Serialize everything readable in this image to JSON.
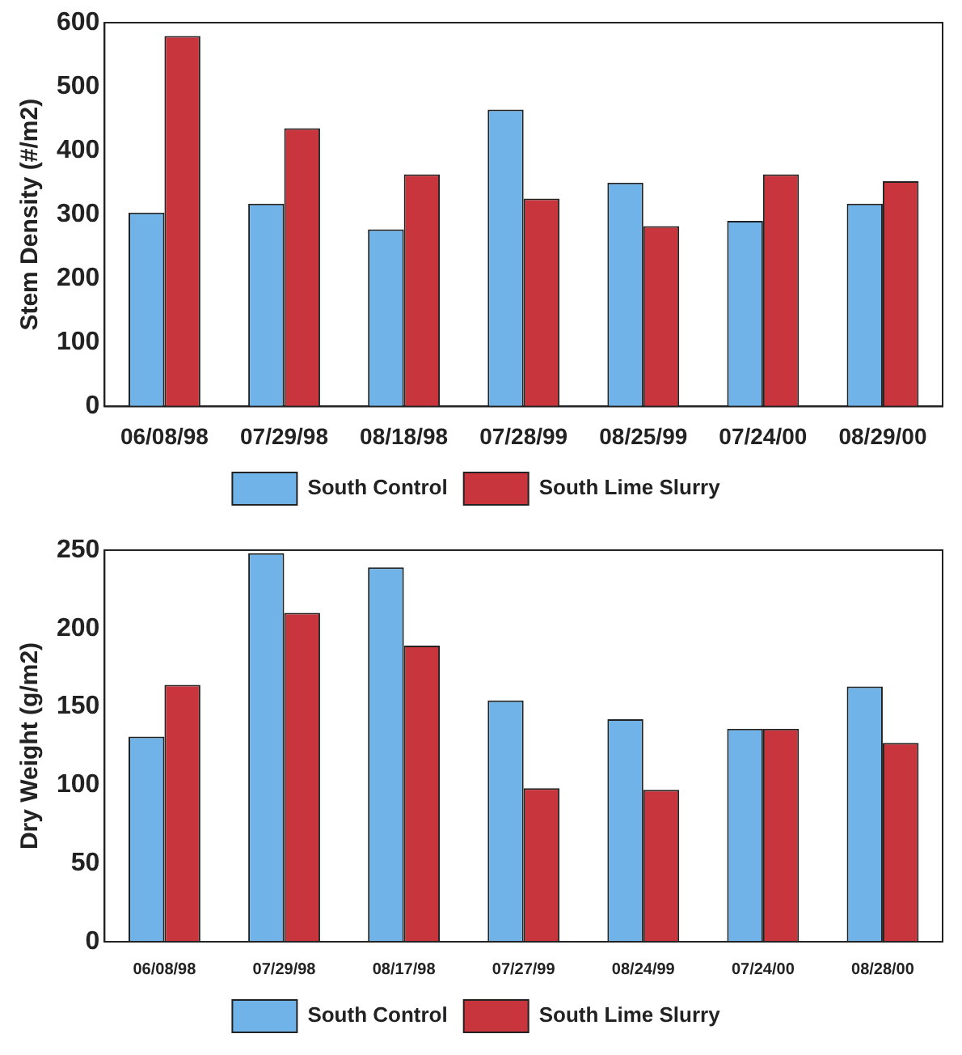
{
  "chart_data": [
    {
      "type": "bar",
      "ylabel": "Stem Density (#/m2)",
      "categories": [
        "06/08/98",
        "07/29/98",
        "08/18/98",
        "07/28/99",
        "08/25/99",
        "07/24/00",
        "08/29/00"
      ],
      "series": [
        {
          "name": "South Control",
          "color": "#6fb3e8",
          "values": [
            303,
            317,
            277,
            464,
            350,
            290,
            317
          ]
        },
        {
          "name": "South Lime Slurry",
          "color": "#c8353c",
          "values": [
            579,
            435,
            363,
            325,
            282,
            363,
            352
          ]
        }
      ],
      "ylim": [
        0,
        600
      ],
      "yticks": [
        0,
        100,
        200,
        300,
        400,
        500,
        600
      ],
      "legend": "bottom"
    },
    {
      "type": "bar",
      "ylabel": "Dry Weight (g/m2)",
      "categories": [
        "06/08/98",
        "07/29/98",
        "08/17/98",
        "07/27/99",
        "08/24/99",
        "07/24/00",
        "08/28/00"
      ],
      "series": [
        {
          "name": "South Control",
          "color": "#6fb3e8",
          "values": [
            131,
            248,
            239,
            154,
            142,
            136,
            163
          ]
        },
        {
          "name": "South Lime Slurry",
          "color": "#c8353c",
          "values": [
            164,
            210,
            189,
            98,
            97,
            136,
            127
          ]
        }
      ],
      "ylim": [
        0,
        250
      ],
      "yticks": [
        0,
        50,
        100,
        150,
        200,
        250
      ],
      "legend": "bottom"
    }
  ]
}
